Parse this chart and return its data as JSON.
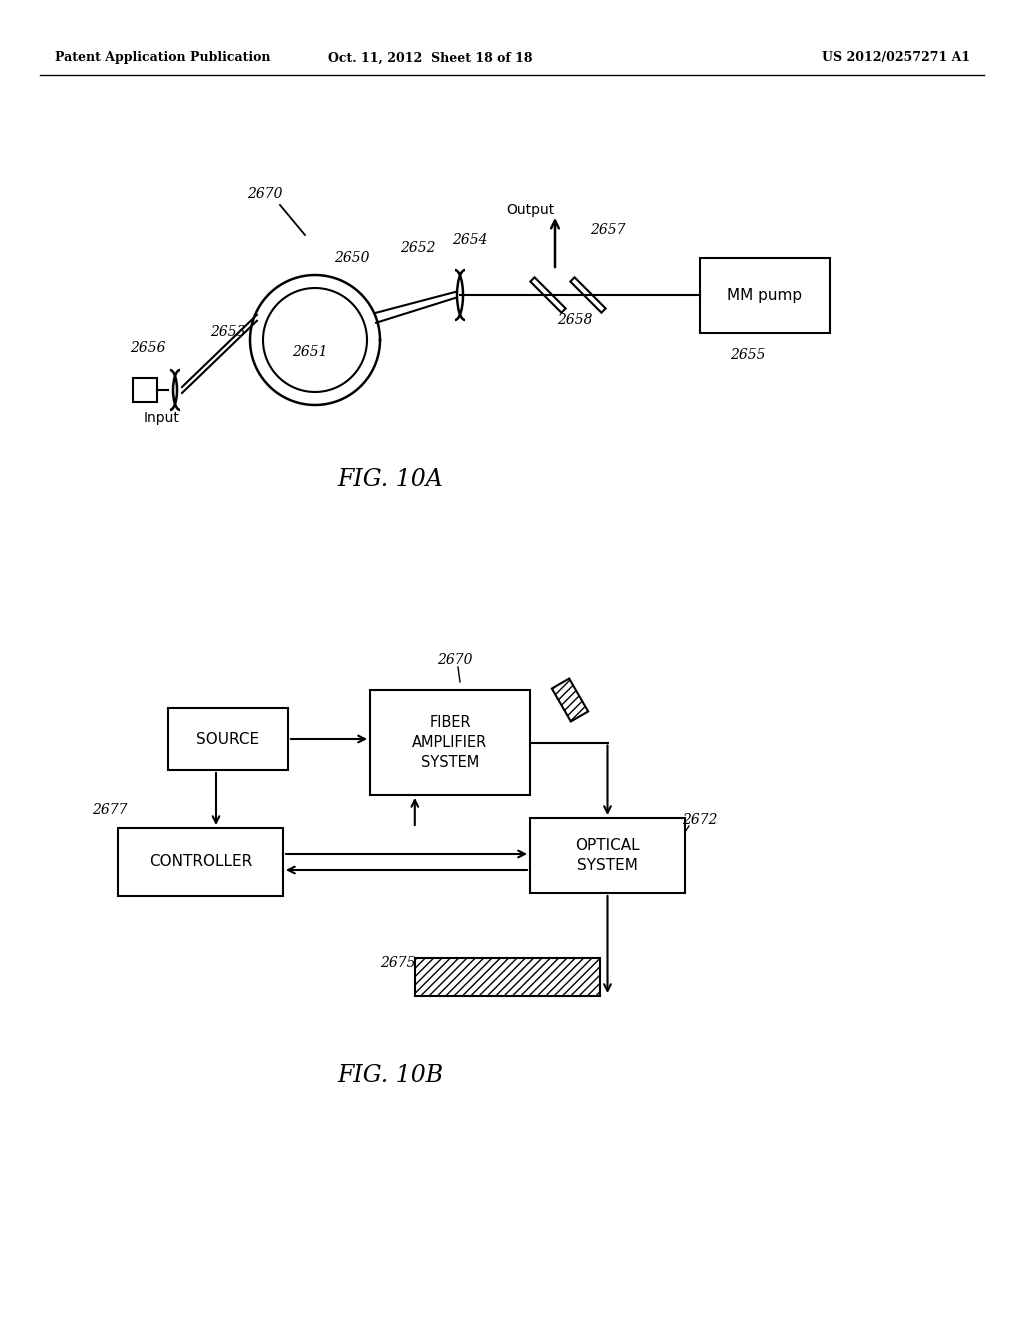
{
  "bg_color": "#ffffff",
  "header_left": "Patent Application Publication",
  "header_mid": "Oct. 11, 2012  Sheet 18 of 18",
  "header_right": "US 2012/0257271 A1",
  "fig10a_label": "FIG. 10A",
  "fig10b_label": "FIG. 10B",
  "label_2670_top": "2670",
  "label_2650": "2650",
  "label_2651": "2651",
  "label_2652": "2652",
  "label_2653": "2653",
  "label_2654": "2654",
  "label_2655": "2655",
  "label_2656": "2656",
  "label_2657": "2657",
  "label_2658": "2658",
  "label_input": "Input",
  "label_output": "Output",
  "label_mm_pump": "MM pump",
  "label_2670b": "2670",
  "label_2672": "2672",
  "label_2675": "2675",
  "label_2677": "2677",
  "box_source": "SOURCE",
  "box_fiber_amp": "FIBER\nAMPLIFIER\nSYSTEM",
  "box_controller": "CONTROLLER",
  "box_optical": "OPTICAL\nSYSTEM"
}
